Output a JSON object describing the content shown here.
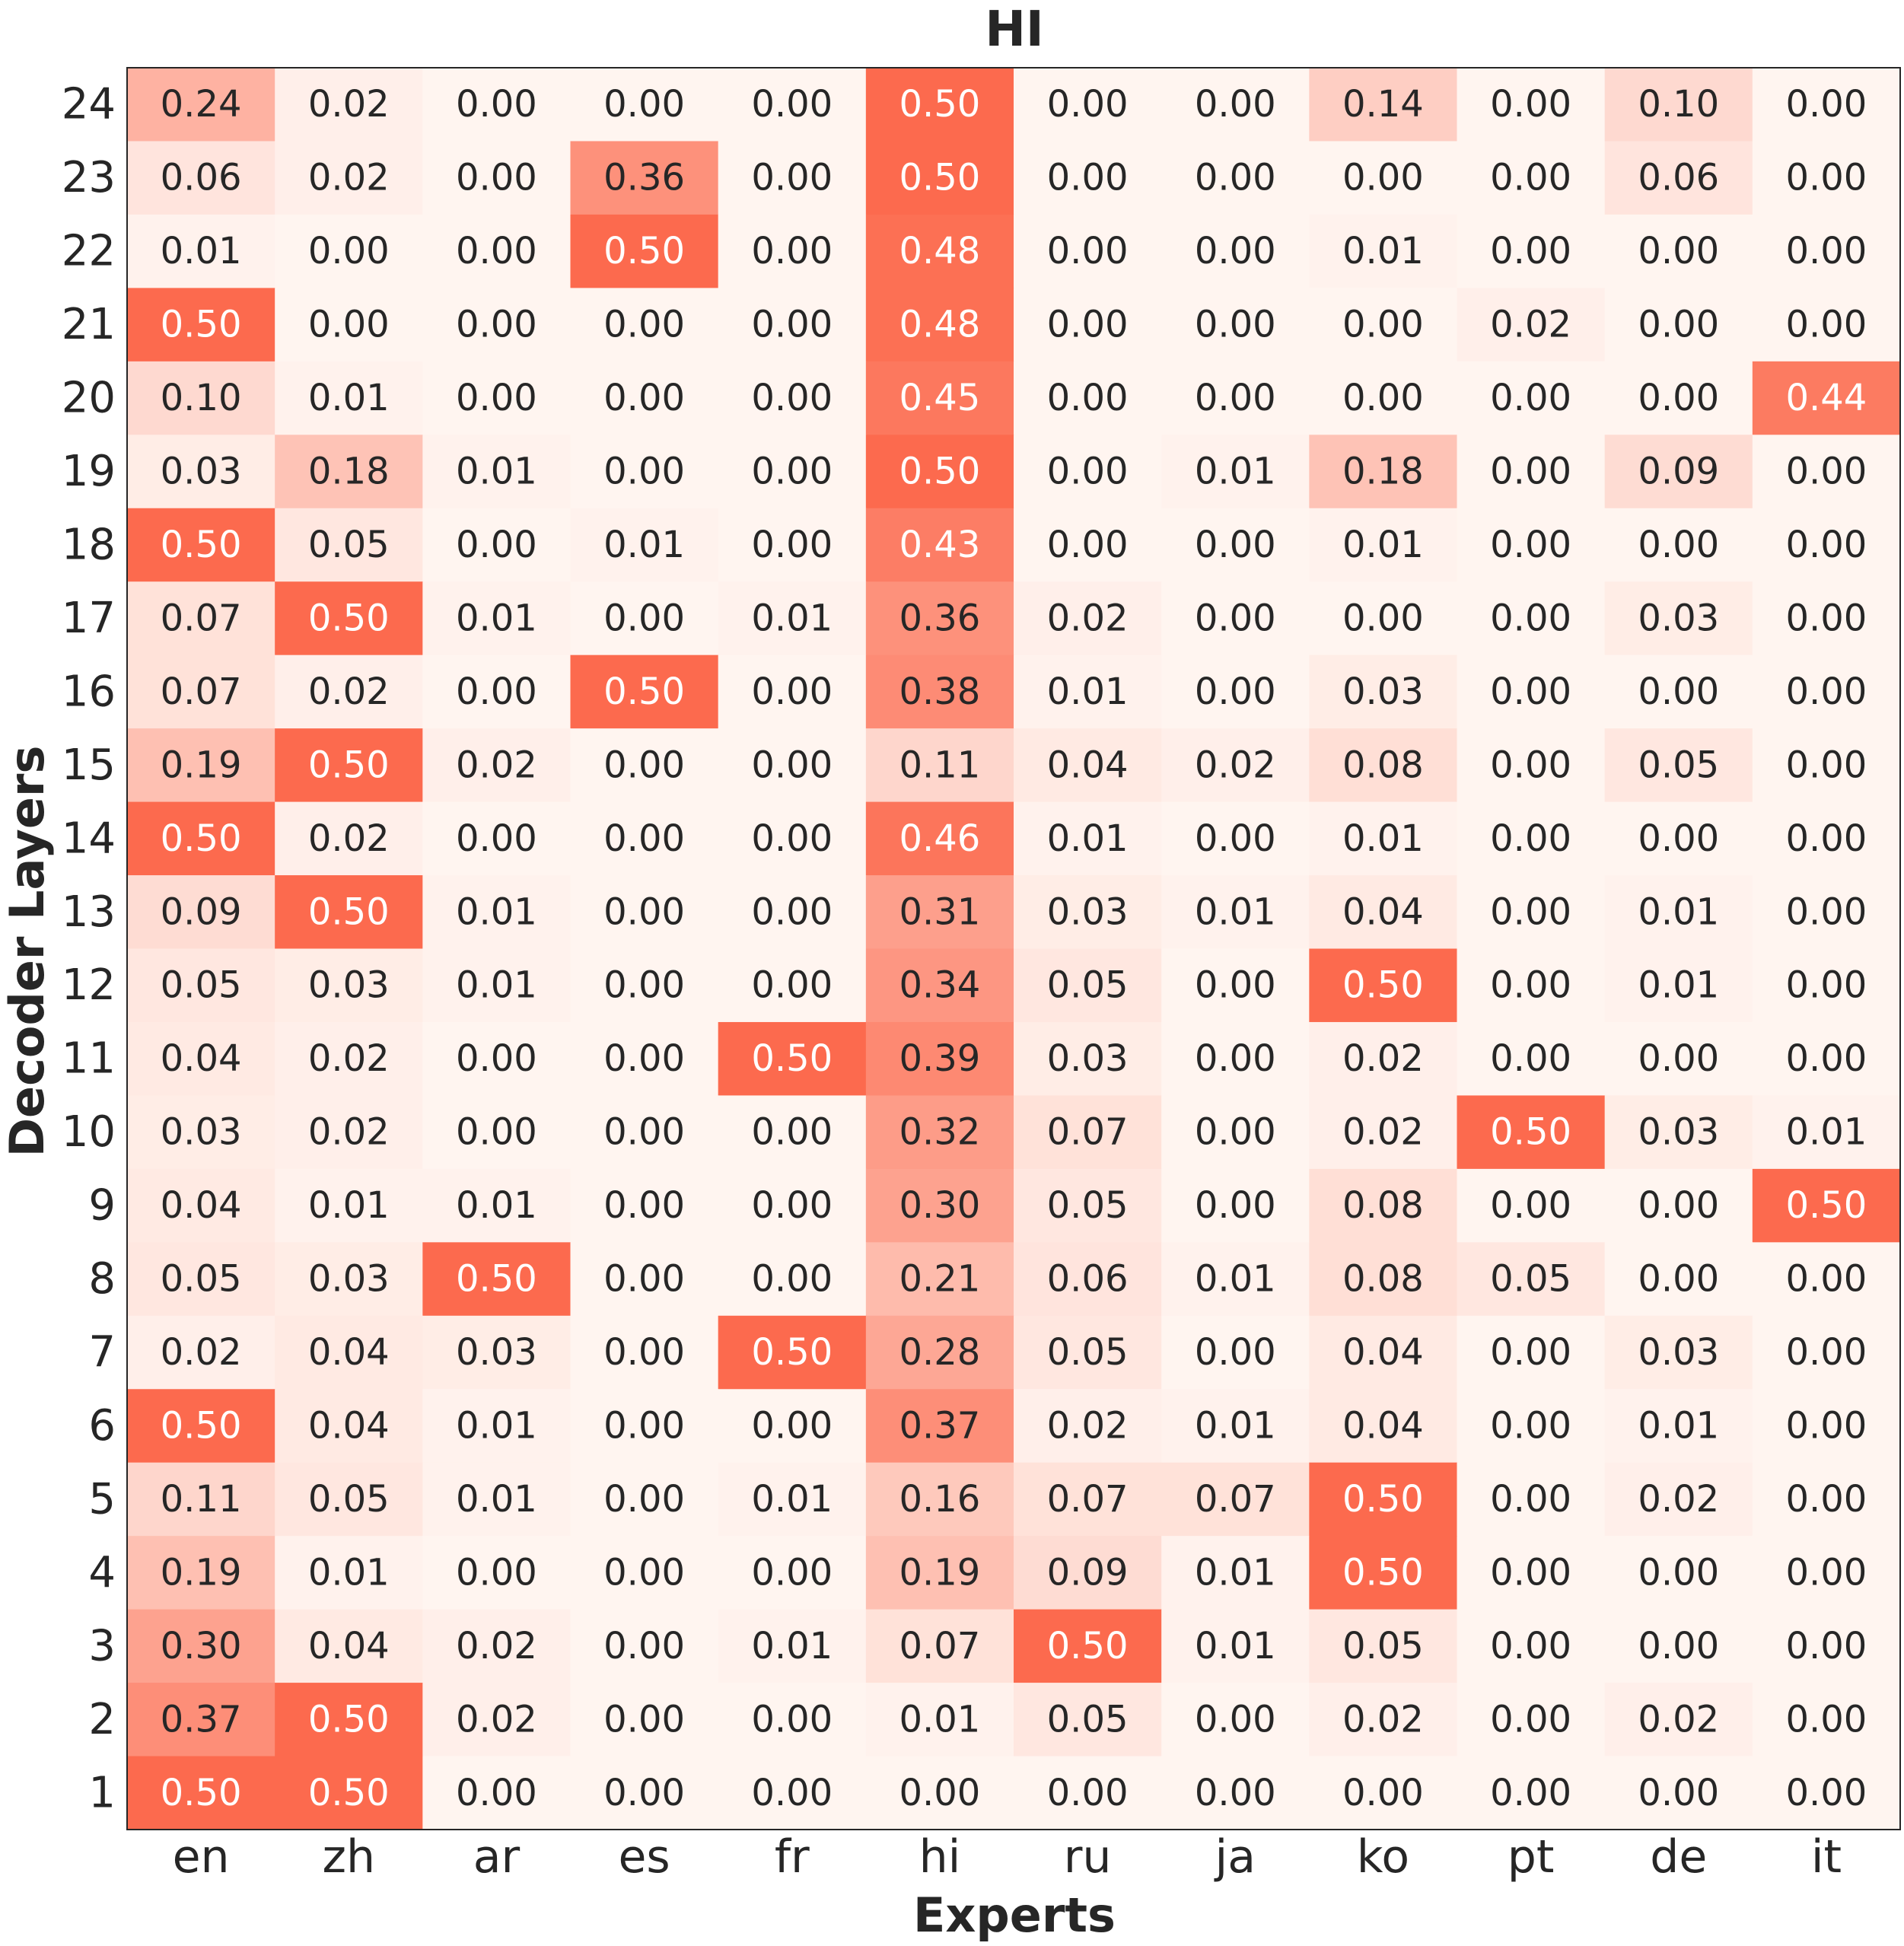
{
  "chart_data": {
    "type": "heatmap",
    "title": "HI",
    "xlabel": "Experts",
    "ylabel": "Decoder Layers",
    "x_categories": [
      "en",
      "zh",
      "ar",
      "es",
      "fr",
      "hi",
      "ru",
      "ja",
      "ko",
      "pt",
      "de",
      "it"
    ],
    "y_categories": [
      "24",
      "23",
      "22",
      "21",
      "20",
      "19",
      "18",
      "17",
      "16",
      "15",
      "14",
      "13",
      "12",
      "11",
      "10",
      "9",
      "8",
      "7",
      "6",
      "5",
      "4",
      "3",
      "2",
      "1"
    ],
    "value_range": [
      0,
      0.5
    ],
    "color_low": "#fff5f0",
    "color_high": "#fc6a4e",
    "values": [
      [
        0.24,
        0.02,
        0.0,
        0.0,
        0.0,
        0.5,
        0.0,
        0.0,
        0.14,
        0.0,
        0.1,
        0.0
      ],
      [
        0.06,
        0.02,
        0.0,
        0.36,
        0.0,
        0.5,
        0.0,
        0.0,
        0.0,
        0.0,
        0.06,
        0.0
      ],
      [
        0.01,
        0.0,
        0.0,
        0.5,
        0.0,
        0.48,
        0.0,
        0.0,
        0.01,
        0.0,
        0.0,
        0.0
      ],
      [
        0.5,
        0.0,
        0.0,
        0.0,
        0.0,
        0.48,
        0.0,
        0.0,
        0.0,
        0.02,
        0.0,
        0.0
      ],
      [
        0.1,
        0.01,
        0.0,
        0.0,
        0.0,
        0.45,
        0.0,
        0.0,
        0.0,
        0.0,
        0.0,
        0.44
      ],
      [
        0.03,
        0.18,
        0.01,
        0.0,
        0.0,
        0.5,
        0.0,
        0.01,
        0.18,
        0.0,
        0.09,
        0.0
      ],
      [
        0.5,
        0.05,
        0.0,
        0.01,
        0.0,
        0.43,
        0.0,
        0.0,
        0.01,
        0.0,
        0.0,
        0.0
      ],
      [
        0.07,
        0.5,
        0.01,
        0.0,
        0.01,
        0.36,
        0.02,
        0.0,
        0.0,
        0.0,
        0.03,
        0.0
      ],
      [
        0.07,
        0.02,
        0.0,
        0.5,
        0.0,
        0.38,
        0.01,
        0.0,
        0.03,
        0.0,
        0.0,
        0.0
      ],
      [
        0.19,
        0.5,
        0.02,
        0.0,
        0.0,
        0.11,
        0.04,
        0.02,
        0.08,
        0.0,
        0.05,
        0.0
      ],
      [
        0.5,
        0.02,
        0.0,
        0.0,
        0.0,
        0.46,
        0.01,
        0.0,
        0.01,
        0.0,
        0.0,
        0.0
      ],
      [
        0.09,
        0.5,
        0.01,
        0.0,
        0.0,
        0.31,
        0.03,
        0.01,
        0.04,
        0.0,
        0.01,
        0.0
      ],
      [
        0.05,
        0.03,
        0.01,
        0.0,
        0.0,
        0.34,
        0.05,
        0.0,
        0.5,
        0.0,
        0.01,
        0.0
      ],
      [
        0.04,
        0.02,
        0.0,
        0.0,
        0.5,
        0.39,
        0.03,
        0.0,
        0.02,
        0.0,
        0.0,
        0.0
      ],
      [
        0.03,
        0.02,
        0.0,
        0.0,
        0.0,
        0.32,
        0.07,
        0.0,
        0.02,
        0.5,
        0.03,
        0.01
      ],
      [
        0.04,
        0.01,
        0.01,
        0.0,
        0.0,
        0.3,
        0.05,
        0.0,
        0.08,
        0.0,
        0.0,
        0.5
      ],
      [
        0.05,
        0.03,
        0.5,
        0.0,
        0.0,
        0.21,
        0.06,
        0.01,
        0.08,
        0.05,
        0.0,
        0.0
      ],
      [
        0.02,
        0.04,
        0.03,
        0.0,
        0.5,
        0.28,
        0.05,
        0.0,
        0.04,
        0.0,
        0.03,
        0.0
      ],
      [
        0.5,
        0.04,
        0.01,
        0.0,
        0.0,
        0.37,
        0.02,
        0.01,
        0.04,
        0.0,
        0.01,
        0.0
      ],
      [
        0.11,
        0.05,
        0.01,
        0.0,
        0.01,
        0.16,
        0.07,
        0.07,
        0.5,
        0.0,
        0.02,
        0.0
      ],
      [
        0.19,
        0.01,
        0.0,
        0.0,
        0.0,
        0.19,
        0.09,
        0.01,
        0.5,
        0.0,
        0.0,
        0.0
      ],
      [
        0.3,
        0.04,
        0.02,
        0.0,
        0.01,
        0.07,
        0.5,
        0.01,
        0.05,
        0.0,
        0.0,
        0.0
      ],
      [
        0.37,
        0.5,
        0.02,
        0.0,
        0.0,
        0.01,
        0.05,
        0.0,
        0.02,
        0.0,
        0.02,
        0.0
      ],
      [
        0.5,
        0.5,
        0.0,
        0.0,
        0.0,
        0.0,
        0.0,
        0.0,
        0.0,
        0.0,
        0.0,
        0.0
      ]
    ]
  }
}
